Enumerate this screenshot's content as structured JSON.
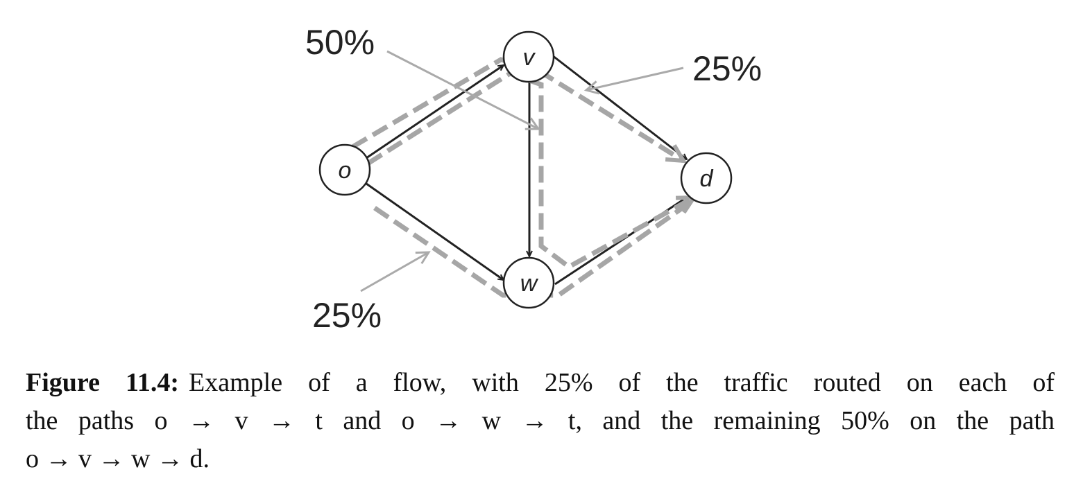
{
  "nodes": [
    {
      "label": "o"
    },
    {
      "label": "v"
    },
    {
      "label": "w"
    },
    {
      "label": "d"
    }
  ],
  "flow_labels": [
    "50%",
    "25%",
    "25%"
  ],
  "caption": {
    "label": "Figure 11.4:",
    "lines": [
      "Example of a flow, with 25% of the traffic routed on each of",
      "the paths o → v → t and o → w → t, and the remaining 50% on the path",
      "o → v → w → d."
    ]
  }
}
